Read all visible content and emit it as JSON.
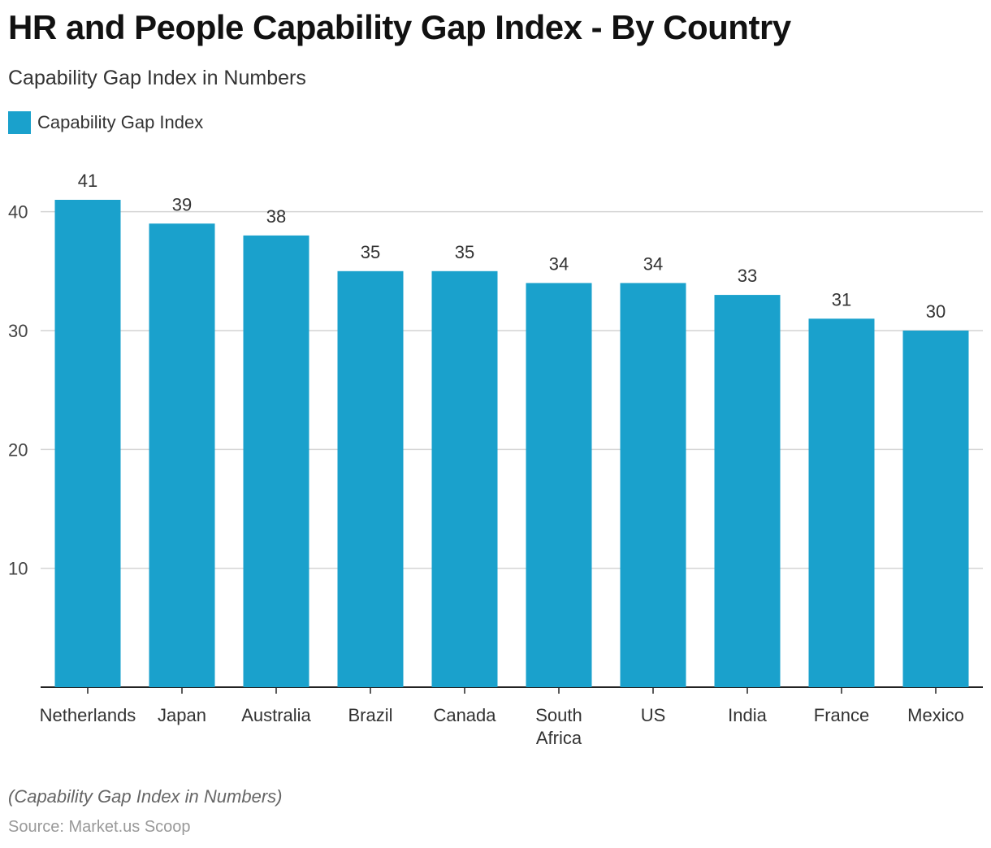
{
  "colors": {
    "bar": "#1aa1cc",
    "grid": "#d4d4d4",
    "axis": "#222222"
  },
  "footnote": "(Capability Gap Index in Numbers)",
  "source": "Source: Market.us Scoop",
  "chart_data": {
    "type": "bar",
    "title": "HR and People Capability Gap Index - By Country",
    "subtitle": "Capability Gap Index in Numbers",
    "legend_position": "top-left",
    "grid": true,
    "categories": [
      [
        "Netherlands"
      ],
      [
        "Japan"
      ],
      [
        "Australia"
      ],
      [
        "Brazil"
      ],
      [
        "Canada"
      ],
      [
        "South",
        "Africa"
      ],
      [
        "US"
      ],
      [
        "India"
      ],
      [
        "France"
      ],
      [
        "Mexico"
      ]
    ],
    "series": [
      {
        "name": "Capability Gap Index",
        "values": [
          41,
          39,
          38,
          35,
          35,
          34,
          34,
          33,
          31,
          30
        ]
      }
    ],
    "yticks": [
      10,
      20,
      30,
      40
    ],
    "ylim": [
      0,
      41
    ]
  }
}
